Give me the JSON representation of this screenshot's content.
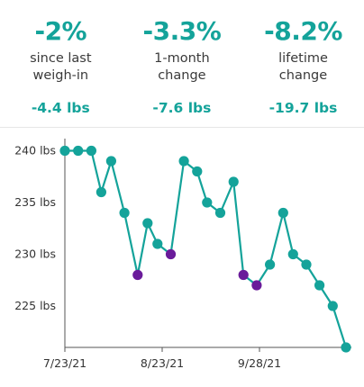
{
  "summary": [
    {
      "percent": "-2%",
      "label_line1": "since last",
      "label_line2": "weigh-in",
      "change_lbs": "-4.4 lbs"
    },
    {
      "percent": "-3.3%",
      "label_line1": "1-month",
      "label_line2": "change",
      "change_lbs": "-7.6 lbs"
    },
    {
      "percent": "-8.2%",
      "label_line1": "lifetime",
      "label_line2": "change",
      "change_lbs": "-19.7 lbs"
    }
  ],
  "colors": {
    "accent": "#14a39a",
    "highlight": "#6a1b9a",
    "axis": "#555555",
    "text": "#333333"
  },
  "chart_data": {
    "type": "line",
    "title": "",
    "xlabel": "",
    "ylabel": "",
    "ylim": [
      221,
      241
    ],
    "y_ticks": [
      240,
      235,
      230,
      225
    ],
    "y_tick_labels": [
      "240 lbs",
      "235 lbs",
      "230 lbs",
      "225 lbs"
    ],
    "x_ticks": [
      "7/23/21",
      "8/23/21",
      "9/28/21"
    ],
    "grid": false,
    "series": [
      {
        "points": [
          {
            "date": "2021-07-23",
            "weight": 240,
            "highlight": false
          },
          {
            "date": "2021-07-27",
            "weight": 240,
            "highlight": false
          },
          {
            "date": "2021-07-31",
            "weight": 240,
            "highlight": false
          },
          {
            "date": "2021-08-03",
            "weight": 236,
            "highlight": false
          },
          {
            "date": "2021-08-06",
            "weight": 239,
            "highlight": false
          },
          {
            "date": "2021-08-10",
            "weight": 234,
            "highlight": false
          },
          {
            "date": "2021-08-14",
            "weight": 228,
            "highlight": true
          },
          {
            "date": "2021-08-17",
            "weight": 233,
            "highlight": false
          },
          {
            "date": "2021-08-20",
            "weight": 231,
            "highlight": false
          },
          {
            "date": "2021-08-24",
            "weight": 230,
            "highlight": true
          },
          {
            "date": "2021-08-28",
            "weight": 239,
            "highlight": false
          },
          {
            "date": "2021-09-01",
            "weight": 238,
            "highlight": false
          },
          {
            "date": "2021-09-04",
            "weight": 235,
            "highlight": false
          },
          {
            "date": "2021-09-08",
            "weight": 234,
            "highlight": false
          },
          {
            "date": "2021-09-12",
            "weight": 237,
            "highlight": false
          },
          {
            "date": "2021-09-15",
            "weight": 228,
            "highlight": true
          },
          {
            "date": "2021-09-19",
            "weight": 227,
            "highlight": true
          },
          {
            "date": "2021-09-23",
            "weight": 229,
            "highlight": false
          },
          {
            "date": "2021-09-27",
            "weight": 234,
            "highlight": false
          },
          {
            "date": "2021-09-30",
            "weight": 230,
            "highlight": false
          },
          {
            "date": "2021-10-04",
            "weight": 229,
            "highlight": false
          },
          {
            "date": "2021-10-08",
            "weight": 227,
            "highlight": false
          },
          {
            "date": "2021-10-12",
            "weight": 225,
            "highlight": false
          },
          {
            "date": "2021-10-16",
            "weight": 221,
            "highlight": false
          }
        ]
      }
    ]
  }
}
